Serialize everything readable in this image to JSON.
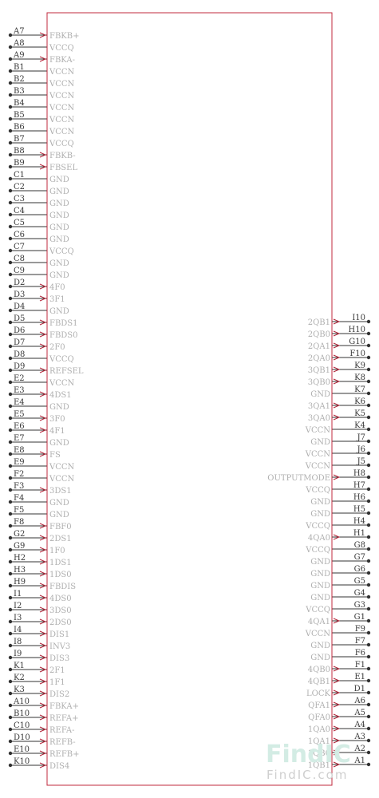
{
  "colors": {
    "body_outline": "#c0283c",
    "pin_line": "#333333",
    "pin_number": "#3a3a3a",
    "pin_name": "#b0b0b0",
    "watermark_primary": "#d3ece4",
    "watermark_secondary": "#cfcfcf"
  },
  "left_pins": [
    {
      "number": "A7",
      "name": "FBKB+",
      "arrow": true
    },
    {
      "number": "A8",
      "name": "VCCQ",
      "arrow": false
    },
    {
      "number": "A9",
      "name": "FBKA-",
      "arrow": true
    },
    {
      "number": "B1",
      "name": "VCCN",
      "arrow": false
    },
    {
      "number": "B2",
      "name": "VCCN",
      "arrow": false
    },
    {
      "number": "B3",
      "name": "VCCN",
      "arrow": false
    },
    {
      "number": "B4",
      "name": "VCCN",
      "arrow": false
    },
    {
      "number": "B5",
      "name": "VCCN",
      "arrow": false
    },
    {
      "number": "B6",
      "name": "VCCN",
      "arrow": false
    },
    {
      "number": "B7",
      "name": "VCCQ",
      "arrow": false
    },
    {
      "number": "B8",
      "name": "FBKB-",
      "arrow": true
    },
    {
      "number": "B9",
      "name": "FBSEL",
      "arrow": true
    },
    {
      "number": "C1",
      "name": "GND",
      "arrow": false
    },
    {
      "number": "C2",
      "name": "GND",
      "arrow": false
    },
    {
      "number": "C3",
      "name": "GND",
      "arrow": false
    },
    {
      "number": "C4",
      "name": "GND",
      "arrow": false
    },
    {
      "number": "C5",
      "name": "GND",
      "arrow": false
    },
    {
      "number": "C6",
      "name": "GND",
      "arrow": false
    },
    {
      "number": "C7",
      "name": "VCCQ",
      "arrow": false
    },
    {
      "number": "C8",
      "name": "GND",
      "arrow": false
    },
    {
      "number": "C9",
      "name": "GND",
      "arrow": false
    },
    {
      "number": "D2",
      "name": "4F0",
      "arrow": true
    },
    {
      "number": "D3",
      "name": "3F1",
      "arrow": true
    },
    {
      "number": "D4",
      "name": "GND",
      "arrow": false
    },
    {
      "number": "D5",
      "name": "FBDS1",
      "arrow": true
    },
    {
      "number": "D6",
      "name": "FBDS0",
      "arrow": true
    },
    {
      "number": "D7",
      "name": "2F0",
      "arrow": true
    },
    {
      "number": "D8",
      "name": "VCCQ",
      "arrow": false
    },
    {
      "number": "D9",
      "name": "REFSEL",
      "arrow": true
    },
    {
      "number": "E2",
      "name": "VCCN",
      "arrow": false
    },
    {
      "number": "E3",
      "name": "4DS1",
      "arrow": true
    },
    {
      "number": "E4",
      "name": "GND",
      "arrow": false
    },
    {
      "number": "E5",
      "name": "3F0",
      "arrow": true
    },
    {
      "number": "E6",
      "name": "4F1",
      "arrow": true
    },
    {
      "number": "E7",
      "name": "GND",
      "arrow": false
    },
    {
      "number": "E8",
      "name": "FS",
      "arrow": true
    },
    {
      "number": "E9",
      "name": "VCCN",
      "arrow": false
    },
    {
      "number": "F2",
      "name": "VCCN",
      "arrow": false
    },
    {
      "number": "F3",
      "name": "3DS1",
      "arrow": true
    },
    {
      "number": "F4",
      "name": "GND",
      "arrow": false
    },
    {
      "number": "F5",
      "name": "GND",
      "arrow": false
    },
    {
      "number": "F8",
      "name": "FBF0",
      "arrow": true
    },
    {
      "number": "G2",
      "name": "2DS1",
      "arrow": true
    },
    {
      "number": "G9",
      "name": "1F0",
      "arrow": true
    },
    {
      "number": "H2",
      "name": "1DS1",
      "arrow": true
    },
    {
      "number": "H3",
      "name": "1DS0",
      "arrow": true
    },
    {
      "number": "H9",
      "name": "FBDIS",
      "arrow": true
    },
    {
      "number": "I1",
      "name": "4DS0",
      "arrow": true
    },
    {
      "number": "I2",
      "name": "3DS0",
      "arrow": true
    },
    {
      "number": "I3",
      "name": "2DS0",
      "arrow": true
    },
    {
      "number": "I4",
      "name": "DIS1",
      "arrow": true
    },
    {
      "number": "I8",
      "name": "INV3",
      "arrow": true
    },
    {
      "number": "I9",
      "name": "DIS3",
      "arrow": true
    },
    {
      "number": "K1",
      "name": "2F1",
      "arrow": true
    },
    {
      "number": "K2",
      "name": "1F1",
      "arrow": true
    },
    {
      "number": "K3",
      "name": "DIS2",
      "arrow": true
    },
    {
      "number": "A10",
      "name": "FBKA+",
      "arrow": true
    },
    {
      "number": "B10",
      "name": "REFA+",
      "arrow": true
    },
    {
      "number": "C10",
      "name": "REFA-",
      "arrow": true
    },
    {
      "number": "D10",
      "name": "REFB-",
      "arrow": true
    },
    {
      "number": "E10",
      "name": "REFB+",
      "arrow": true
    },
    {
      "number": "K10",
      "name": "DIS4",
      "arrow": true
    }
  ],
  "right_pins": [
    {
      "number": "I10",
      "name": "2QB1",
      "arrow": true
    },
    {
      "number": "H10",
      "name": "2QB0",
      "arrow": true
    },
    {
      "number": "G10",
      "name": "2QA1",
      "arrow": true
    },
    {
      "number": "F10",
      "name": "2QA0",
      "arrow": true
    },
    {
      "number": "K9",
      "name": "3QB1",
      "arrow": true
    },
    {
      "number": "K8",
      "name": "3QB0",
      "arrow": true
    },
    {
      "number": "K7",
      "name": "GND",
      "arrow": false
    },
    {
      "number": "K6",
      "name": "3QA1",
      "arrow": true
    },
    {
      "number": "K5",
      "name": "3QA0",
      "arrow": true
    },
    {
      "number": "K4",
      "name": "VCCN",
      "arrow": false
    },
    {
      "number": "J7",
      "name": "GND",
      "arrow": false
    },
    {
      "number": "J6",
      "name": "VCCN",
      "arrow": false
    },
    {
      "number": "J5",
      "name": "VCCN",
      "arrow": false
    },
    {
      "number": "H8",
      "name": "OUTPUTMODE",
      "arrow": true
    },
    {
      "number": "H7",
      "name": "VCCQ",
      "arrow": false
    },
    {
      "number": "H6",
      "name": "GND",
      "arrow": false
    },
    {
      "number": "H5",
      "name": "GND",
      "arrow": false
    },
    {
      "number": "H4",
      "name": "VCCQ",
      "arrow": false
    },
    {
      "number": "H1",
      "name": "4QA0",
      "arrow": true
    },
    {
      "number": "G8",
      "name": "VCCQ",
      "arrow": false
    },
    {
      "number": "G7",
      "name": "GND",
      "arrow": false
    },
    {
      "number": "G6",
      "name": "GND",
      "arrow": false
    },
    {
      "number": "G5",
      "name": "GND",
      "arrow": false
    },
    {
      "number": "G4",
      "name": "GND",
      "arrow": false
    },
    {
      "number": "G3",
      "name": "VCCQ",
      "arrow": false
    },
    {
      "number": "G1",
      "name": "4QA1",
      "arrow": true
    },
    {
      "number": "F9",
      "name": "VCCN",
      "arrow": false
    },
    {
      "number": "F7",
      "name": "GND",
      "arrow": false
    },
    {
      "number": "F6",
      "name": "GND",
      "arrow": false
    },
    {
      "number": "F1",
      "name": "4QB0",
      "arrow": true
    },
    {
      "number": "E1",
      "name": "4QB1",
      "arrow": true
    },
    {
      "number": "D1",
      "name": "LOCK",
      "arrow": true
    },
    {
      "number": "A6",
      "name": "QFA1",
      "arrow": true
    },
    {
      "number": "A5",
      "name": "QFA0",
      "arrow": true
    },
    {
      "number": "A4",
      "name": "1QA0",
      "arrow": true
    },
    {
      "number": "A3",
      "name": "1QA1",
      "arrow": true
    },
    {
      "number": "A2",
      "name": "1QB0",
      "arrow": true
    },
    {
      "number": "A1",
      "name": "1QB1",
      "arrow": true
    }
  ],
  "watermark": {
    "logo_text": "FindIC",
    "site_text": "FindIC.com"
  }
}
